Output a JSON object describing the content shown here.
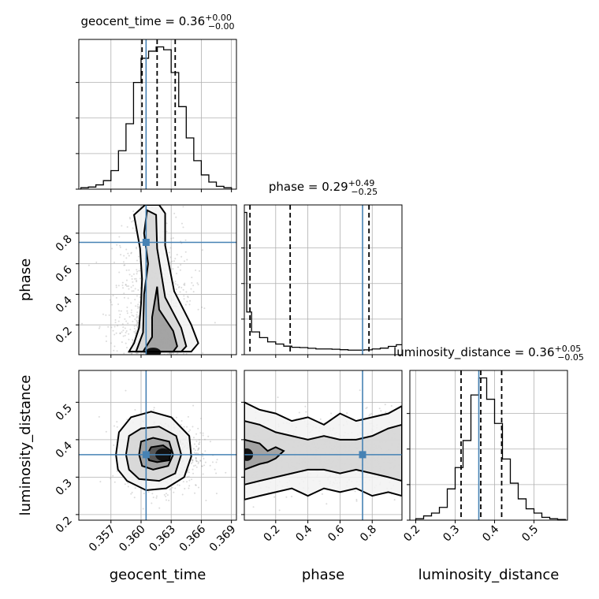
{
  "chart_data": {
    "type": "corner",
    "parameters": [
      "geocent_time",
      "phase",
      "luminosity_distance"
    ],
    "truths": {
      "geocent_time": 0.3605,
      "phase": 0.74,
      "luminosity_distance": 0.36
    },
    "colors": {
      "truth": "#4682b4",
      "hist": "#000000",
      "grid": "#b0b0b0"
    },
    "titles": {
      "geocent_time": {
        "label": "geocent_time = 0.36",
        "sup": "+0.00",
        "sub": "−0.00"
      },
      "phase": {
        "label": "phase = 0.29",
        "sup": "+0.49",
        "sub": "−0.25"
      },
      "luminosity_distance": {
        "label": "luminosity_distance = 0.36",
        "sup": "+0.05",
        "sub": "−0.05"
      }
    },
    "axes": {
      "geocent_time": {
        "range": [
          0.3538,
          0.3695
        ],
        "ticks": [
          "0.357",
          "0.360",
          "0.363",
          "0.366",
          "0.369"
        ],
        "tick_values": [
          0.357,
          0.36,
          0.363,
          0.366,
          0.369
        ]
      },
      "phase": {
        "range": [
          0.005,
          0.985
        ],
        "ticks": [
          "0.2",
          "0.4",
          "0.6",
          "0.8"
        ],
        "tick_values": [
          0.2,
          0.4,
          0.6,
          0.8
        ]
      },
      "luminosity_distance": {
        "range": [
          0.185,
          0.585
        ],
        "ticks": [
          "0.2",
          "0.3",
          "0.4",
          "0.5"
        ],
        "tick_values": [
          0.2,
          0.3,
          0.4,
          0.5
        ]
      }
    },
    "histograms": {
      "geocent_time": {
        "quantiles": [
          0.3601,
          0.3616,
          0.3634
        ],
        "edges": [
          0.354,
          0.35475,
          0.3555,
          0.35625,
          0.357,
          0.35775,
          0.3585,
          0.35925,
          0.36,
          0.36075,
          0.3615,
          0.36225,
          0.363,
          0.36375,
          0.3645,
          0.36525,
          0.366,
          0.36675,
          0.3675,
          0.36825,
          0.369
        ],
        "counts": [
          0.01,
          0.015,
          0.03,
          0.06,
          0.13,
          0.27,
          0.46,
          0.75,
          0.92,
          0.97,
          1.0,
          0.98,
          0.82,
          0.58,
          0.36,
          0.2,
          0.1,
          0.05,
          0.02,
          0.01
        ]
      },
      "phase": {
        "quantiles": [
          0.04,
          0.29,
          0.78
        ],
        "edges": [
          0.0,
          0.02,
          0.05,
          0.1,
          0.15,
          0.2,
          0.25,
          0.3,
          0.35,
          0.4,
          0.45,
          0.5,
          0.55,
          0.6,
          0.65,
          0.7,
          0.75,
          0.8,
          0.85,
          0.9,
          0.95,
          1.0
        ],
        "counts": [
          1.0,
          0.3,
          0.16,
          0.12,
          0.09,
          0.075,
          0.06,
          0.052,
          0.05,
          0.045,
          0.04,
          0.04,
          0.038,
          0.035,
          0.032,
          0.032,
          0.034,
          0.04,
          0.046,
          0.058,
          0.07
        ]
      },
      "luminosity_distance": {
        "quantiles": [
          0.315,
          0.365,
          0.418
        ],
        "edges": [
          0.2,
          0.22,
          0.24,
          0.26,
          0.28,
          0.3,
          0.32,
          0.34,
          0.36,
          0.38,
          0.4,
          0.42,
          0.44,
          0.46,
          0.48,
          0.5,
          0.52,
          0.54,
          0.56,
          0.58
        ],
        "counts": [
          0.01,
          0.03,
          0.05,
          0.09,
          0.22,
          0.37,
          0.56,
          0.88,
          1.0,
          0.85,
          0.68,
          0.43,
          0.26,
          0.15,
          0.08,
          0.05,
          0.02,
          0.01,
          0.005
        ]
      }
    },
    "densities_2d": [
      {
        "x": "geocent_time",
        "y": "phase",
        "peak": [
          0.3612,
          0.02
        ],
        "contours": [
          [
            [
              0.3588,
              0.025
            ],
            [
              0.3593,
              0.08
            ],
            [
              0.3598,
              0.18
            ],
            [
              0.36,
              0.34
            ],
            [
              0.3601,
              0.5
            ],
            [
              0.3599,
              0.7
            ],
            [
              0.3593,
              0.92
            ],
            [
              0.3604,
              0.985
            ],
            [
              0.3618,
              0.985
            ],
            [
              0.3624,
              0.93
            ],
            [
              0.3624,
              0.72
            ],
            [
              0.3633,
              0.42
            ],
            [
              0.365,
              0.2
            ],
            [
              0.3657,
              0.08
            ],
            [
              0.365,
              0.025
            ]
          ],
          [
            [
              0.3595,
              0.025
            ],
            [
              0.3602,
              0.15
            ],
            [
              0.3603,
              0.4
            ],
            [
              0.3607,
              0.6
            ],
            [
              0.3603,
              0.8
            ],
            [
              0.3606,
              0.95
            ],
            [
              0.3615,
              0.92
            ],
            [
              0.3616,
              0.7
            ],
            [
              0.3624,
              0.38
            ],
            [
              0.364,
              0.18
            ],
            [
              0.3645,
              0.06
            ],
            [
              0.364,
              0.025
            ]
          ],
          [
            [
              0.3602,
              0.025
            ],
            [
              0.3611,
              0.12
            ],
            [
              0.3611,
              0.25
            ],
            [
              0.3616,
              0.45
            ],
            [
              0.3618,
              0.3
            ],
            [
              0.3632,
              0.16
            ],
            [
              0.3636,
              0.06
            ],
            [
              0.3632,
              0.025
            ]
          ]
        ]
      },
      {
        "x": "geocent_time",
        "y": "luminosity_distance",
        "peak": [
          0.3622,
          0.36
        ],
        "contours": [
          [
            [
              0.3575,
              0.36
            ],
            [
              0.3578,
              0.42
            ],
            [
              0.359,
              0.46
            ],
            [
              0.361,
              0.475
            ],
            [
              0.363,
              0.46
            ],
            [
              0.3648,
              0.41
            ],
            [
              0.365,
              0.355
            ],
            [
              0.3643,
              0.3
            ],
            [
              0.3625,
              0.27
            ],
            [
              0.3605,
              0.265
            ],
            [
              0.3586,
              0.29
            ],
            [
              0.3577,
              0.32
            ]
          ],
          [
            [
              0.3585,
              0.36
            ],
            [
              0.3588,
              0.41
            ],
            [
              0.36,
              0.43
            ],
            [
              0.3618,
              0.435
            ],
            [
              0.3635,
              0.41
            ],
            [
              0.364,
              0.36
            ],
            [
              0.3634,
              0.31
            ],
            [
              0.3618,
              0.29
            ],
            [
              0.3598,
              0.295
            ],
            [
              0.3588,
              0.32
            ]
          ],
          [
            [
              0.3598,
              0.36
            ],
            [
              0.36,
              0.395
            ],
            [
              0.3612,
              0.405
            ],
            [
              0.3628,
              0.395
            ],
            [
              0.3632,
              0.36
            ],
            [
              0.3627,
              0.33
            ],
            [
              0.3612,
              0.32
            ],
            [
              0.3601,
              0.33
            ]
          ],
          [
            [
              0.3606,
              0.36
            ],
            [
              0.361,
              0.38
            ],
            [
              0.3622,
              0.385
            ],
            [
              0.363,
              0.37
            ],
            [
              0.3628,
              0.345
            ],
            [
              0.3616,
              0.34
            ],
            [
              0.3608,
              0.345
            ]
          ]
        ]
      },
      {
        "x": "phase",
        "y": "luminosity_distance",
        "peak": [
          0.02,
          0.36
        ],
        "contours": [
          [
            [
              0.005,
              0.5
            ],
            [
              0.1,
              0.48
            ],
            [
              0.2,
              0.47
            ],
            [
              0.3,
              0.45
            ],
            [
              0.4,
              0.46
            ],
            [
              0.5,
              0.44
            ],
            [
              0.6,
              0.47
            ],
            [
              0.7,
              0.45
            ],
            [
              0.8,
              0.46
            ],
            [
              0.9,
              0.47
            ],
            [
              0.985,
              0.49
            ],
            [
              0.985,
              0.25
            ],
            [
              0.9,
              0.26
            ],
            [
              0.8,
              0.25
            ],
            [
              0.7,
              0.27
            ],
            [
              0.6,
              0.26
            ],
            [
              0.5,
              0.27
            ],
            [
              0.4,
              0.25
            ],
            [
              0.3,
              0.27
            ],
            [
              0.2,
              0.26
            ],
            [
              0.1,
              0.25
            ],
            [
              0.005,
              0.24
            ]
          ],
          [
            [
              0.005,
              0.45
            ],
            [
              0.1,
              0.44
            ],
            [
              0.2,
              0.42
            ],
            [
              0.3,
              0.41
            ],
            [
              0.4,
              0.4
            ],
            [
              0.5,
              0.41
            ],
            [
              0.6,
              0.4
            ],
            [
              0.7,
              0.4
            ],
            [
              0.8,
              0.41
            ],
            [
              0.9,
              0.43
            ],
            [
              0.985,
              0.44
            ],
            [
              0.985,
              0.29
            ],
            [
              0.9,
              0.3
            ],
            [
              0.8,
              0.31
            ],
            [
              0.7,
              0.32
            ],
            [
              0.6,
              0.31
            ],
            [
              0.5,
              0.32
            ],
            [
              0.4,
              0.32
            ],
            [
              0.3,
              0.31
            ],
            [
              0.2,
              0.3
            ],
            [
              0.1,
              0.29
            ],
            [
              0.005,
              0.28
            ]
          ],
          [
            [
              0.005,
              0.4
            ],
            [
              0.1,
              0.39
            ],
            [
              0.15,
              0.37
            ],
            [
              0.2,
              0.38
            ],
            [
              0.25,
              0.37
            ],
            [
              0.2,
              0.35
            ],
            [
              0.15,
              0.34
            ],
            [
              0.1,
              0.335
            ],
            [
              0.005,
              0.32
            ]
          ]
        ]
      }
    ]
  }
}
